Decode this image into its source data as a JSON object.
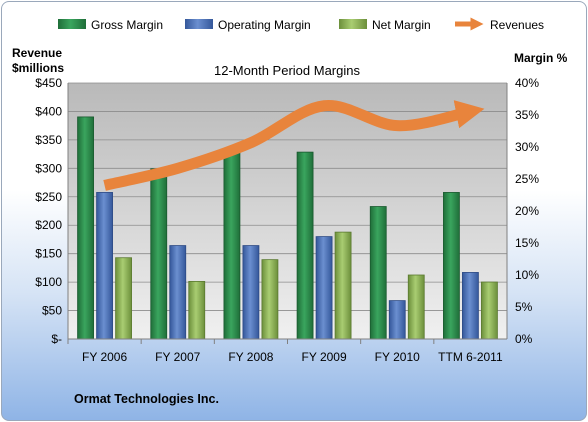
{
  "chart_data": {
    "type": "bar",
    "title": "12-Month Period Margins",
    "left_axis_label_line1": "Revenue",
    "left_axis_label_line2": "$millions",
    "right_axis_label": "Margin %",
    "categories": [
      "FY 2006",
      "FY 2007",
      "FY 2008",
      "FY 2009",
      "FY 2010",
      "TTM 6-2011"
    ],
    "series": [
      {
        "name": "Gross Margin",
        "axis": "right",
        "color": "#2e8b4e",
        "values": [
          34.7,
          26.6,
          29.6,
          29.2,
          20.7,
          22.9
        ]
      },
      {
        "name": "Operating Margin",
        "axis": "right",
        "color": "#4a72b8",
        "values": [
          22.9,
          14.6,
          14.6,
          16.0,
          6.0,
          10.4
        ]
      },
      {
        "name": "Net Margin",
        "axis": "right",
        "color": "#8db45a",
        "values": [
          12.7,
          9.0,
          12.4,
          16.7,
          10.0,
          8.9
        ]
      },
      {
        "name": "Revenues",
        "axis": "left",
        "color": "#e8843c",
        "type": "line",
        "values": [
          270,
          300,
          345,
          410,
          375,
          400
        ]
      }
    ],
    "ylim_left": [
      0,
      450
    ],
    "yticks_left": [
      "$-",
      "$50",
      "$100",
      "$150",
      "$200",
      "$250",
      "$300",
      "$350",
      "$400",
      "$450"
    ],
    "ylim_right": [
      0,
      40
    ],
    "yticks_right": [
      "0%",
      "5%",
      "10%",
      "15%",
      "20%",
      "25%",
      "30%",
      "35%",
      "40%"
    ],
    "legend_position": "top",
    "grid": true
  },
  "footer": {
    "company": "Ormat Technologies Inc."
  },
  "colors": {
    "plot_background_top": "#bdbdbd",
    "plot_background_bottom": "#eeeeee",
    "revenue_line": "#e8843c"
  }
}
